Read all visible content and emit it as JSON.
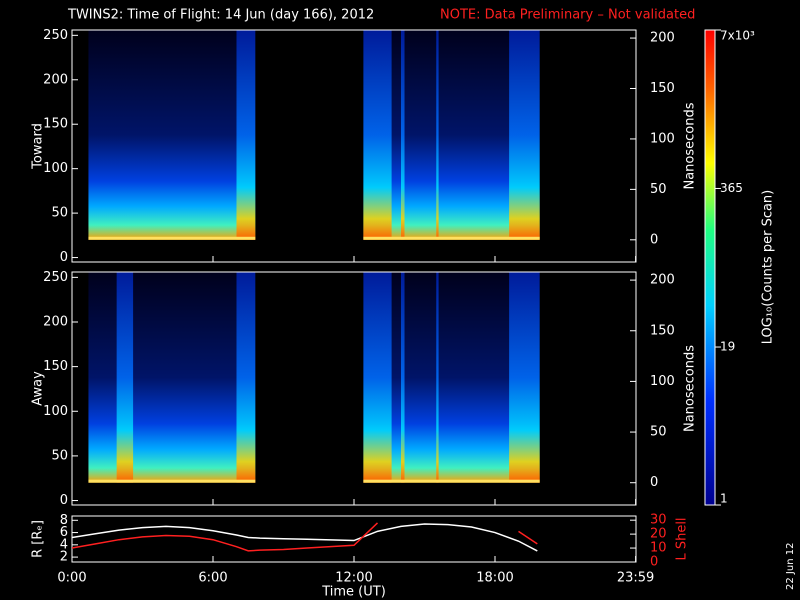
{
  "title": "TWINS2: Time of Flight: 14 Jun (day 166), 2012",
  "note": "NOTE: Data Preliminary – Not validated",
  "date_stamp": "22 Jun 12",
  "colorbar": {
    "label": "LOG₁₀(Counts per Scan)",
    "log": true,
    "lim": [
      1,
      7000
    ],
    "ticks": [
      {
        "value": 7000,
        "label": "7x10³"
      },
      365,
      19,
      1
    ]
  },
  "chart_data": [
    {
      "type": "spectrogram",
      "ylabel": "Toward",
      "ylim": [
        -5,
        256
      ],
      "yticks": [
        0,
        50,
        100,
        150,
        200,
        250
      ],
      "y2label": "Nanoseconds",
      "y2lim": [
        -22,
        208
      ],
      "y2ticks": [
        0,
        50,
        100,
        150,
        200
      ]
    },
    {
      "type": "spectrogram",
      "ylabel": "Away",
      "ylim": [
        -5,
        256
      ],
      "yticks": [
        0,
        50,
        100,
        150,
        200,
        250
      ],
      "y2label": "Nanoseconds",
      "y2lim": [
        -22,
        208
      ],
      "y2ticks": [
        0,
        50,
        100,
        150,
        200
      ]
    },
    {
      "type": "line",
      "xlabel": "Time (UT)",
      "ylabel": "R [Rₑ]",
      "y2label": "L Shell",
      "xlim": [
        0,
        24
      ],
      "xticks": [
        {
          "value": 0,
          "label": "0:00"
        },
        {
          "value": 6,
          "label": "6:00"
        },
        {
          "value": 12,
          "label": "12:00"
        },
        {
          "value": 18,
          "label": "18:00"
        },
        {
          "value": 23.983,
          "label": "23:59"
        }
      ],
      "ylim": [
        1.2,
        8.7
      ],
      "yticks": [
        2,
        4,
        6,
        8
      ],
      "y2lim": [
        0,
        33
      ],
      "y2ticks": [
        0,
        10,
        20,
        30
      ],
      "x": [
        0,
        1,
        2,
        3,
        4,
        5,
        6,
        7,
        7.5,
        8,
        9,
        10,
        11,
        12,
        13,
        14,
        15,
        16,
        17,
        18,
        19,
        19.8
      ],
      "series": [
        {
          "color": "#ffffff",
          "values": [
            5.2,
            5.8,
            6.4,
            6.8,
            7.0,
            6.8,
            6.3,
            5.6,
            5.2,
            5.1,
            5.0,
            4.9,
            4.8,
            4.7,
            6.2,
            7.0,
            7.4,
            7.3,
            6.9,
            6.0,
            4.6,
            3.0
          ]
        },
        {
          "color": "#ff2020",
          "axis": "y2",
          "values": [
            10,
            13,
            16,
            18,
            19,
            18.5,
            16,
            11,
            8,
            8.5,
            9,
            10,
            11,
            12,
            28,
            null,
            null,
            null,
            null,
            null,
            22,
            13
          ]
        }
      ]
    }
  ]
}
